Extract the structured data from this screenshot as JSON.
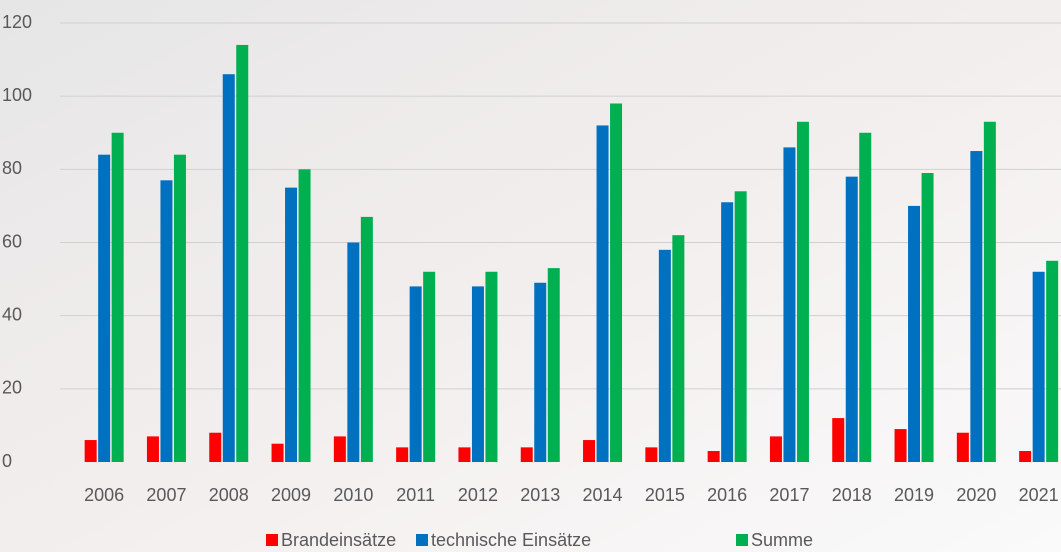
{
  "chart_data": {
    "type": "bar",
    "categories": [
      "2006",
      "2007",
      "2008",
      "2009",
      "2010",
      "2011",
      "2012",
      "2013",
      "2014",
      "2015",
      "2016",
      "2017",
      "2018",
      "2019",
      "2020",
      "2021"
    ],
    "series": [
      {
        "name": "Brandeinsätze",
        "color": "#ff0000",
        "values": [
          6,
          7,
          8,
          5,
          7,
          4,
          4,
          4,
          6,
          4,
          3,
          7,
          12,
          9,
          8,
          3
        ]
      },
      {
        "name": "technische Einsätze",
        "color": "#0070c0",
        "values": [
          84,
          77,
          106,
          75,
          60,
          48,
          48,
          49,
          92,
          58,
          71,
          86,
          78,
          70,
          85,
          52
        ]
      },
      {
        "name": "Summe",
        "color": "#00b050",
        "values": [
          90,
          84,
          114,
          80,
          67,
          52,
          52,
          53,
          98,
          62,
          74,
          93,
          90,
          79,
          93,
          55
        ]
      }
    ],
    "ylim": [
      0,
      120
    ],
    "yticks": [
      0,
      20,
      40,
      60,
      80,
      100,
      120
    ],
    "grid": true,
    "legend": "bottom"
  }
}
